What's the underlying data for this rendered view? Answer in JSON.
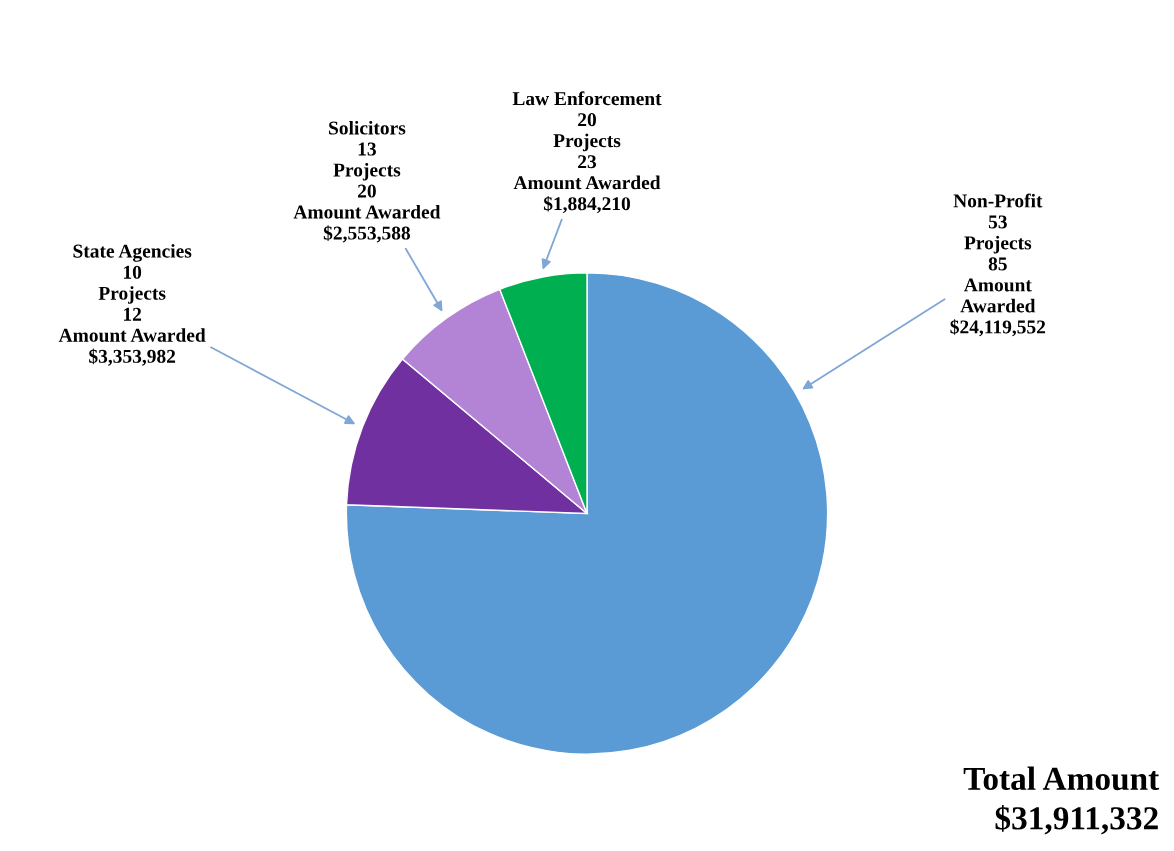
{
  "chart_data": {
    "type": "pie",
    "categories": [
      "Non-Profit",
      "State Agencies",
      "Solicitors",
      "Law Enforcement"
    ],
    "values": [
      24119552,
      3353982,
      2553588,
      1884210
    ],
    "colors": [
      "#5b9bd5",
      "#7030a0",
      "#b384d6",
      "#00b050"
    ],
    "value_labels": [
      "53\nProjects\n85\nAmount\nAwarded\n$24,119,552",
      "10\nProjects\n12\nAmount Awarded\n$3,353,982",
      "13\nProjects\n20\nAmount Awarded\n$2,553,588",
      "20\nProjects\n23\nAmount Awarded\n$1,884,210"
    ],
    "annotations": [
      "Total Amount\n$31,911,332"
    ]
  }
}
